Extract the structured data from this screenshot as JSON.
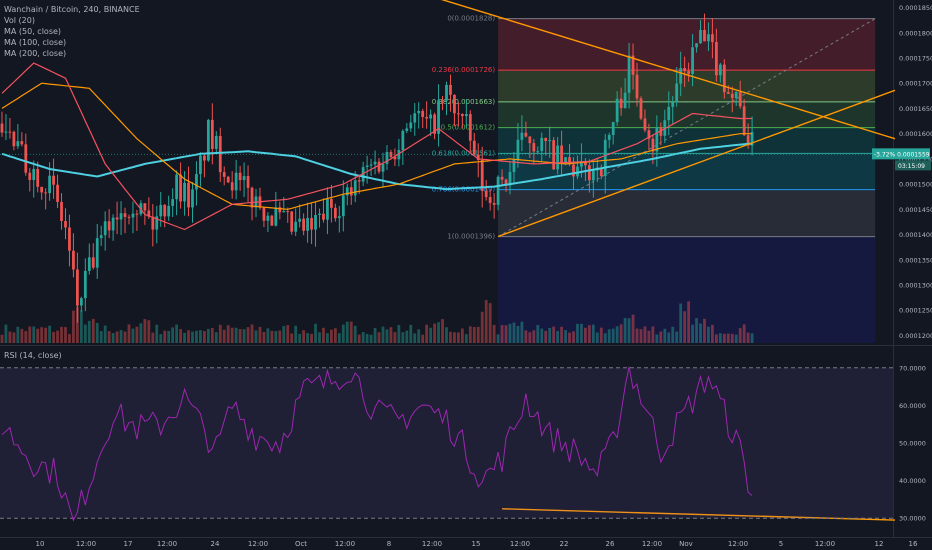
{
  "header": {
    "symbol_line": "Wanchain / Bitcoin, 240, BINANCE",
    "indicators": [
      "Vol (20)",
      "MA (50, close)",
      "MA (100, close)",
      "MA (200, close)"
    ]
  },
  "rsi": {
    "label": "RSI (14, close)",
    "levels": [
      70,
      30
    ],
    "ticks": [
      "70.0000",
      "60.0000",
      "50.0000",
      "40.0000",
      "30.0000"
    ]
  },
  "price_axis": {
    "ticks": [
      "0.0001850",
      "0.0001800",
      "0.0001750",
      "0.0001700",
      "0.0001650",
      "0.0001600",
      "0.0001550",
      "0.0001500",
      "0.0001450",
      "0.0001400",
      "0.0001350",
      "0.0001300",
      "0.0001250",
      "0.0001200"
    ],
    "current_change": "-3.72%",
    "current_price": "0.0001559",
    "countdown": "03:15:09"
  },
  "time_axis": {
    "ticks": [
      "10",
      "12:00",
      "17",
      "12:00",
      "24",
      "12:00",
      "Oct",
      "12:00",
      "8",
      "12:00",
      "15",
      "12:00",
      "22",
      "26",
      "12:00",
      "Nov",
      "12:00",
      "5",
      "12:00",
      "12",
      "16"
    ]
  },
  "fib_levels": [
    {
      "label": "0(0.0001828)",
      "value": 0.0001828,
      "color": "#787b86"
    },
    {
      "label": "0.236(0.0001726)",
      "value": 0.0001726,
      "color": "#f23645"
    },
    {
      "label": "0.382(0.0001663)",
      "value": 0.0001663,
      "color": "#81c784"
    },
    {
      "label": "0.5(0.0001612)",
      "value": 0.0001612,
      "color": "#4caf50"
    },
    {
      "label": "0.618(0.0001561)",
      "value": 0.0001561,
      "color": "#26a69a"
    },
    {
      "label": "0.786(0.0001489)",
      "value": 0.0001489,
      "color": "#2196f3"
    },
    {
      "label": "1(0.0001396)",
      "value": 0.0001396,
      "color": "#787b86"
    }
  ],
  "colors": {
    "up": "#26a69a",
    "down": "#ef5350",
    "ma50": "#f7525f",
    "ma100": "#ff9800",
    "ma200": "#4dd0e1",
    "rsi": "#9c27b0",
    "trendline": "#ff9800",
    "background": "#131722"
  },
  "chart_data": {
    "type": "candlestick",
    "title": "Wanchain / Bitcoin, 240, BINANCE",
    "price_range": [
      0.0001185,
      0.0001865
    ],
    "price_waypoints": [
      [
        0,
        0.000162
      ],
      [
        6,
        0.000154
      ],
      [
        12,
        0.00015
      ],
      [
        16,
        0.000141
      ],
      [
        19,
        0.000126
      ],
      [
        23,
        0.000135
      ],
      [
        28,
        0.000144
      ],
      [
        33,
        0.000147
      ],
      [
        38,
        0.000142
      ],
      [
        44,
        0.00015
      ],
      [
        48,
        0.000147
      ],
      [
        52,
        0.00016
      ],
      [
        57,
        0.000152
      ],
      [
        62,
        0.000148
      ],
      [
        68,
        0.000144
      ],
      [
        73,
        0.000141
      ],
      [
        78,
        0.000141
      ],
      [
        82,
        0.000145
      ],
      [
        88,
        0.000148
      ],
      [
        92,
        0.000153
      ],
      [
        98,
        0.000156
      ],
      [
        103,
        0.000164
      ],
      [
        108,
        0.000161
      ],
      [
        112,
        0.000168
      ],
      [
        117,
        0.000161
      ],
      [
        122,
        0.000147
      ],
      [
        127,
        0.000151
      ],
      [
        132,
        0.00016
      ],
      [
        137,
        0.000157
      ],
      [
        141,
        0.000154
      ],
      [
        146,
        0.000152
      ],
      [
        151,
        0.000154
      ],
      [
        155,
        0.000165
      ],
      [
        158,
        0.000173
      ],
      [
        161,
        0.000166
      ],
      [
        164,
        0.000158
      ],
      [
        168,
        0.000165
      ],
      [
        172,
        0.000172
      ],
      [
        176,
        0.000179
      ],
      [
        179,
        0.000176
      ],
      [
        183,
        0.000169
      ],
      [
        186,
        0.000165
      ],
      [
        188,
        0.000159
      ],
      [
        190,
        0.000156
      ]
    ],
    "ma_waypoints": {
      "ma50": [
        [
          0,
          0.000168
        ],
        [
          8,
          0.000174
        ],
        [
          16,
          0.000171
        ],
        [
          26,
          0.000154
        ],
        [
          36,
          0.000144
        ],
        [
          46,
          0.000141
        ],
        [
          58,
          0.000146
        ],
        [
          72,
          0.000147
        ],
        [
          86,
          0.00015
        ],
        [
          98,
          0.000155
        ],
        [
          110,
          0.000161
        ],
        [
          120,
          0.000155
        ],
        [
          134,
          0.000154
        ],
        [
          148,
          0.0001545
        ],
        [
          160,
          0.000158
        ],
        [
          174,
          0.000164
        ],
        [
          186,
          0.000163
        ]
      ],
      "ma100": [
        [
          0,
          0.000165
        ],
        [
          10,
          0.00017
        ],
        [
          22,
          0.000169
        ],
        [
          34,
          0.000159
        ],
        [
          46,
          0.000151
        ],
        [
          58,
          0.000146
        ],
        [
          72,
          0.000145
        ],
        [
          86,
          0.000148
        ],
        [
          100,
          0.00015
        ],
        [
          114,
          0.000154
        ],
        [
          128,
          0.000155
        ],
        [
          142,
          0.000154
        ],
        [
          156,
          0.000155
        ],
        [
          170,
          0.000158
        ],
        [
          186,
          0.00016
        ]
      ],
      "ma200": [
        [
          0,
          0.000156
        ],
        [
          12,
          0.000153
        ],
        [
          24,
          0.0001515
        ],
        [
          36,
          0.000154
        ],
        [
          50,
          0.000156
        ],
        [
          62,
          0.0001565
        ],
        [
          74,
          0.0001555
        ],
        [
          88,
          0.000152
        ],
        [
          100,
          0.00015
        ],
        [
          112,
          0.000149
        ],
        [
          124,
          0.0001495
        ],
        [
          136,
          0.000151
        ],
        [
          150,
          0.000153
        ],
        [
          164,
          0.000155
        ],
        [
          176,
          0.000157
        ],
        [
          188,
          0.000158
        ]
      ]
    },
    "volume_spikes": [
      [
        19,
        0.7
      ],
      [
        23,
        0.45
      ],
      [
        36,
        0.5
      ],
      [
        88,
        0.4
      ],
      [
        110,
        0.5
      ],
      [
        122,
        0.8
      ],
      [
        130,
        0.4
      ],
      [
        158,
        0.6
      ],
      [
        172,
        0.8
      ],
      [
        176,
        0.5
      ]
    ],
    "rsi_waypoints": [
      [
        0,
        55
      ],
      [
        8,
        45
      ],
      [
        14,
        42
      ],
      [
        18,
        28
      ],
      [
        22,
        40
      ],
      [
        28,
        58
      ],
      [
        34,
        54
      ],
      [
        40,
        55
      ],
      [
        46,
        62
      ],
      [
        54,
        48
      ],
      [
        58,
        60
      ],
      [
        64,
        52
      ],
      [
        70,
        50
      ],
      [
        76,
        64
      ],
      [
        82,
        66
      ],
      [
        88,
        70
      ],
      [
        94,
        58
      ],
      [
        100,
        56
      ],
      [
        106,
        60
      ],
      [
        112,
        56
      ],
      [
        117,
        48
      ],
      [
        121,
        40
      ],
      [
        126,
        46
      ],
      [
        132,
        62
      ],
      [
        138,
        52
      ],
      [
        144,
        48
      ],
      [
        150,
        42
      ],
      [
        154,
        50
      ],
      [
        158,
        70
      ],
      [
        162,
        60
      ],
      [
        166,
        48
      ],
      [
        172,
        58
      ],
      [
        178,
        68
      ],
      [
        182,
        58
      ],
      [
        186,
        48
      ],
      [
        190,
        32
      ]
    ],
    "rsi_range": [
      25,
      75
    ],
    "candle_count": 190,
    "right_blank_bars": 35,
    "trendlines": [
      {
        "kind": "descending-resistance",
        "from": [
          105,
          0.000188
        ],
        "to": [
          225,
          0.000159
        ]
      },
      {
        "kind": "ascending-support",
        "from": [
          125,
          0.0001396
        ],
        "to": [
          225,
          0.0001686
        ]
      },
      {
        "kind": "rsi-divergence",
        "from": [
          126,
          32.5
        ],
        "to": [
          225,
          29.5
        ]
      }
    ],
    "fib_retracement": {
      "from_bar": 125,
      "to_bar": 220,
      "high": 0.0001828,
      "low": 0.0001396
    }
  }
}
